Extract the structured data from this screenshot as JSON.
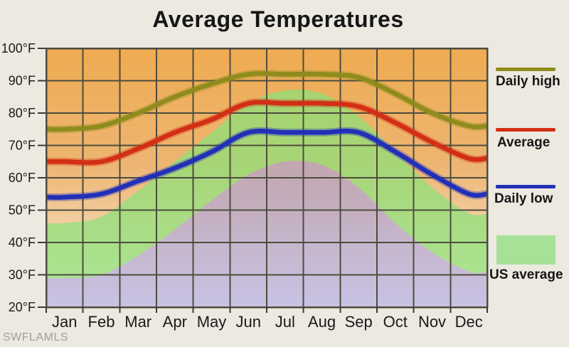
{
  "page": {
    "background": "#ece9e1",
    "watermark": "SWFLAMLS"
  },
  "chart_data": {
    "type": "line",
    "title": "Average Temperatures",
    "categories": [
      "Jan",
      "Feb",
      "Mar",
      "Apr",
      "May",
      "Jun",
      "Jul",
      "Aug",
      "Sep",
      "Oct",
      "Nov",
      "Dec"
    ],
    "series": [
      {
        "name": "Daily high",
        "type": "line",
        "color": "#8f8c1d",
        "values": [
          75,
          76,
          80,
          85,
          89,
          92,
          92,
          92,
          91,
          86,
          80,
          76
        ]
      },
      {
        "name": "Average",
        "type": "line",
        "color": "#d22f15",
        "values": [
          65,
          65,
          69,
          74,
          78,
          83,
          83,
          83,
          82,
          77,
          71,
          66
        ]
      },
      {
        "name": "Daily low",
        "type": "line",
        "color": "#2230b8",
        "values": [
          54,
          55,
          59,
          63,
          68,
          74,
          74,
          74,
          74,
          68,
          61,
          55
        ]
      },
      {
        "name": "US average",
        "type": "area-band",
        "color": "#8ce278",
        "band_opacity": 0.72,
        "below_color": "#9f9ae2",
        "below_opacity": 0.55,
        "legend_swatch": "#a6e197",
        "values_high": [
          46,
          48,
          56,
          65,
          74,
          83,
          87,
          86,
          79,
          68,
          57,
          49
        ],
        "values_low": [
          29,
          30,
          36,
          44,
          53,
          61,
          65,
          64,
          57,
          46,
          37,
          31
        ]
      }
    ],
    "ylim": [
      20,
      100
    ],
    "ytick_step": 10,
    "ytick_suffix": "°F",
    "grid": true,
    "grid_color": "#4c4c3e",
    "legend_position": "right",
    "plot_background_top": "#efab51",
    "plot_background_mid": "#edb572",
    "plot_background_bottom": "#fbf2e6"
  }
}
